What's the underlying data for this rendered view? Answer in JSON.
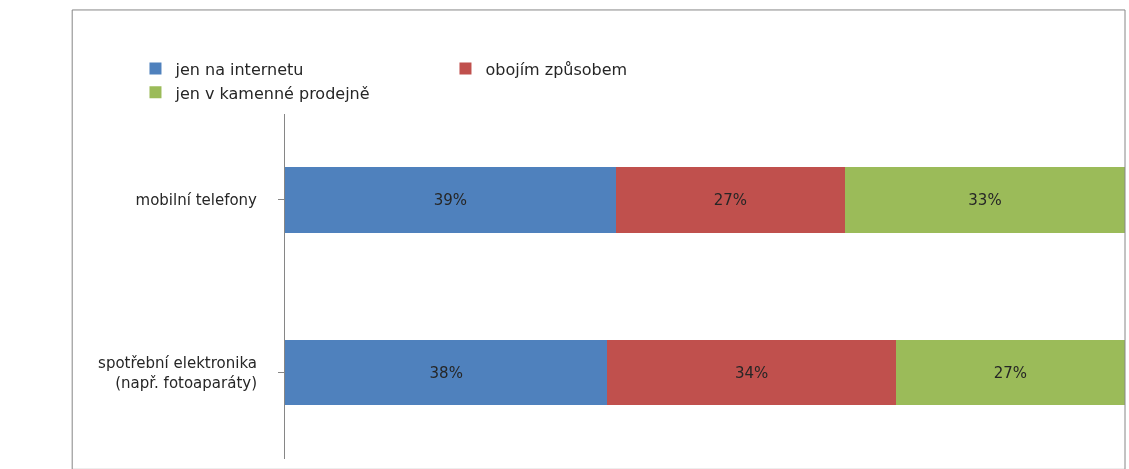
{
  "chart_data": {
    "type": "bar",
    "orientation": "horizontal",
    "stacked": true,
    "legend": "top",
    "tick_labels": "y",
    "categories": [
      "mobilní telefony",
      "spotřební elektronika\n(např. fotoaparáty)"
    ],
    "series": [
      {
        "name": "jen na internetu",
        "color": "#4f81bd",
        "values": [
          39,
          38
        ],
        "value_labels": [
          "39%",
          "38%"
        ]
      },
      {
        "name": "obojím způsobem",
        "color": "#c0504d",
        "values": [
          27,
          34
        ],
        "value_labels": [
          "27%",
          "34%"
        ]
      },
      {
        "name": "jen v kamenné prodejně",
        "color": "#9bbb59",
        "values": [
          33,
          27
        ],
        "value_labels": [
          "33%",
          "27%"
        ]
      }
    ]
  }
}
